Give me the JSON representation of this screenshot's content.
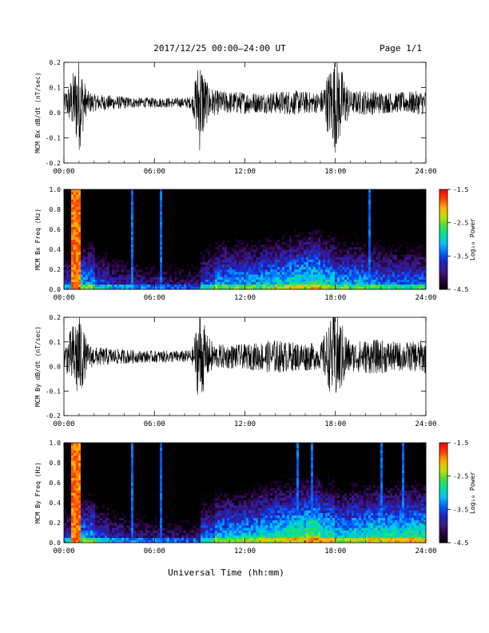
{
  "header": {
    "title": "2017/12/25  00:00–24:00 UT",
    "page": "Page 1/1"
  },
  "footer": {
    "xlabel": "Universal Time (hh:mm)"
  },
  "colors": {
    "trace": "#000000",
    "colorscale": [
      "#000000",
      "#2a0040",
      "#3a1a80",
      "#2020c0",
      "#0060ff",
      "#00c0ff",
      "#00e0a0",
      "#40e040",
      "#c0e000",
      "#ffb000",
      "#ff4000",
      "#ff0000"
    ]
  },
  "chart_data": [
    {
      "type": "line",
      "station": "MCM",
      "ylabel": "MCM Bx dB/dt (nT/sec)",
      "xlim": [
        0,
        24
      ],
      "ylim": [
        -0.2,
        0.2
      ],
      "xticks": [
        "00:00",
        "06:00",
        "12:00",
        "18:00",
        "24:00"
      ],
      "yticks": [
        "-0.2",
        "-0.1",
        "0.0",
        "0.1",
        "0.2"
      ],
      "series": [
        {
          "x": [
            0.0,
            0.5,
            1.0,
            1.5,
            2.0,
            3.0,
            4.0,
            5.0,
            6.0,
            7.0,
            8.0,
            8.5,
            9.0,
            9.5,
            10.0,
            11.0,
            12.0,
            13.0,
            14.0,
            15.0,
            16.0,
            17.0,
            18.0,
            19.0,
            20.0,
            21.0,
            22.0,
            23.0,
            24.0
          ],
          "amplitude": [
            0.03,
            0.1,
            0.2,
            0.05,
            0.035,
            0.03,
            0.025,
            0.02,
            0.02,
            0.02,
            0.02,
            0.025,
            0.2,
            0.08,
            0.05,
            0.045,
            0.045,
            0.04,
            0.045,
            0.05,
            0.045,
            0.04,
            0.2,
            0.045,
            0.05,
            0.045,
            0.04,
            0.045,
            0.05
          ],
          "center": 0.04
        }
      ]
    },
    {
      "type": "heatmap",
      "station": "MCM",
      "ylabel": "MCM Bx Freq (Hz)",
      "xlim": [
        0,
        24
      ],
      "ylim": [
        0.0,
        1.0
      ],
      "xticks": [
        "00:00",
        "06:00",
        "12:00",
        "18:00",
        "24:00"
      ],
      "yticks": [
        "0.0",
        "0.2",
        "0.4",
        "0.6",
        "0.8",
        "1.0"
      ],
      "colorbar": {
        "label": "Log₁₀ Power",
        "range": [
          -4.5,
          -1.5
        ],
        "ticks": [
          "-1.5",
          "-2.5",
          "-3.5",
          "-4.5"
        ]
      },
      "broadband_hours": [
        0.7,
        0.85,
        1.0
      ],
      "spike_hours": [
        4.5,
        6.5,
        20.2
      ],
      "low_freq_power_by_hour": [
        -3.5,
        -3.0,
        -3.4,
        -3.6,
        -3.7,
        -3.8,
        -3.8,
        -3.9,
        -3.9,
        -3.3,
        -3.0,
        -3.0,
        -3.0,
        -2.9,
        -2.8,
        -2.7,
        -2.6,
        -2.8,
        -3.0,
        -3.0,
        -3.1,
        -3.2,
        -3.2,
        -3.2
      ]
    },
    {
      "type": "line",
      "station": "MCM",
      "ylabel": "MCM By dB/dt (nT/sec)",
      "xlim": [
        0,
        24
      ],
      "ylim": [
        -0.2,
        0.2
      ],
      "xticks": [
        "00:00",
        "06:00",
        "12:00",
        "18:00",
        "24:00"
      ],
      "yticks": [
        "-0.2",
        "-0.1",
        "0.0",
        "0.1",
        "0.2"
      ],
      "series": [
        {
          "x": [
            0.0,
            0.5,
            1.0,
            1.5,
            2.0,
            3.0,
            4.0,
            5.0,
            6.0,
            7.0,
            8.0,
            8.5,
            9.0,
            9.5,
            10.0,
            11.0,
            12.0,
            13.0,
            14.0,
            15.0,
            16.0,
            17.0,
            18.0,
            19.0,
            20.0,
            21.0,
            22.0,
            23.0,
            24.0
          ],
          "amplitude": [
            0.04,
            0.12,
            0.2,
            0.06,
            0.04,
            0.035,
            0.03,
            0.025,
            0.025,
            0.025,
            0.025,
            0.03,
            0.2,
            0.09,
            0.05,
            0.05,
            0.05,
            0.06,
            0.07,
            0.06,
            0.06,
            0.05,
            0.2,
            0.06,
            0.07,
            0.07,
            0.06,
            0.06,
            0.07
          ],
          "center": 0.04
        }
      ]
    },
    {
      "type": "heatmap",
      "station": "MCM",
      "ylabel": "MCM By Freq (Hz)",
      "xlim": [
        0,
        24
      ],
      "ylim": [
        0.0,
        1.0
      ],
      "xticks": [
        "00:00",
        "06:00",
        "12:00",
        "18:00",
        "24:00"
      ],
      "yticks": [
        "0.0",
        "0.2",
        "0.4",
        "0.6",
        "0.8",
        "1.0"
      ],
      "colorbar": {
        "label": "Log₁₀ Power",
        "range": [
          -4.5,
          -1.5
        ],
        "ticks": [
          "-1.5",
          "-2.5",
          "-3.5",
          "-4.5"
        ]
      },
      "broadband_hours": [
        0.7,
        0.85,
        1.0
      ],
      "spike_hours": [
        4.5,
        6.5,
        15.5,
        16.5,
        21.0,
        22.5
      ],
      "low_freq_power_by_hour": [
        -3.5,
        -3.0,
        -3.4,
        -3.6,
        -3.7,
        -3.8,
        -3.8,
        -3.9,
        -3.9,
        -3.2,
        -2.9,
        -2.9,
        -2.8,
        -2.7,
        -2.6,
        -2.5,
        -2.4,
        -2.6,
        -2.8,
        -2.7,
        -2.6,
        -2.6,
        -2.6,
        -2.6
      ]
    }
  ]
}
